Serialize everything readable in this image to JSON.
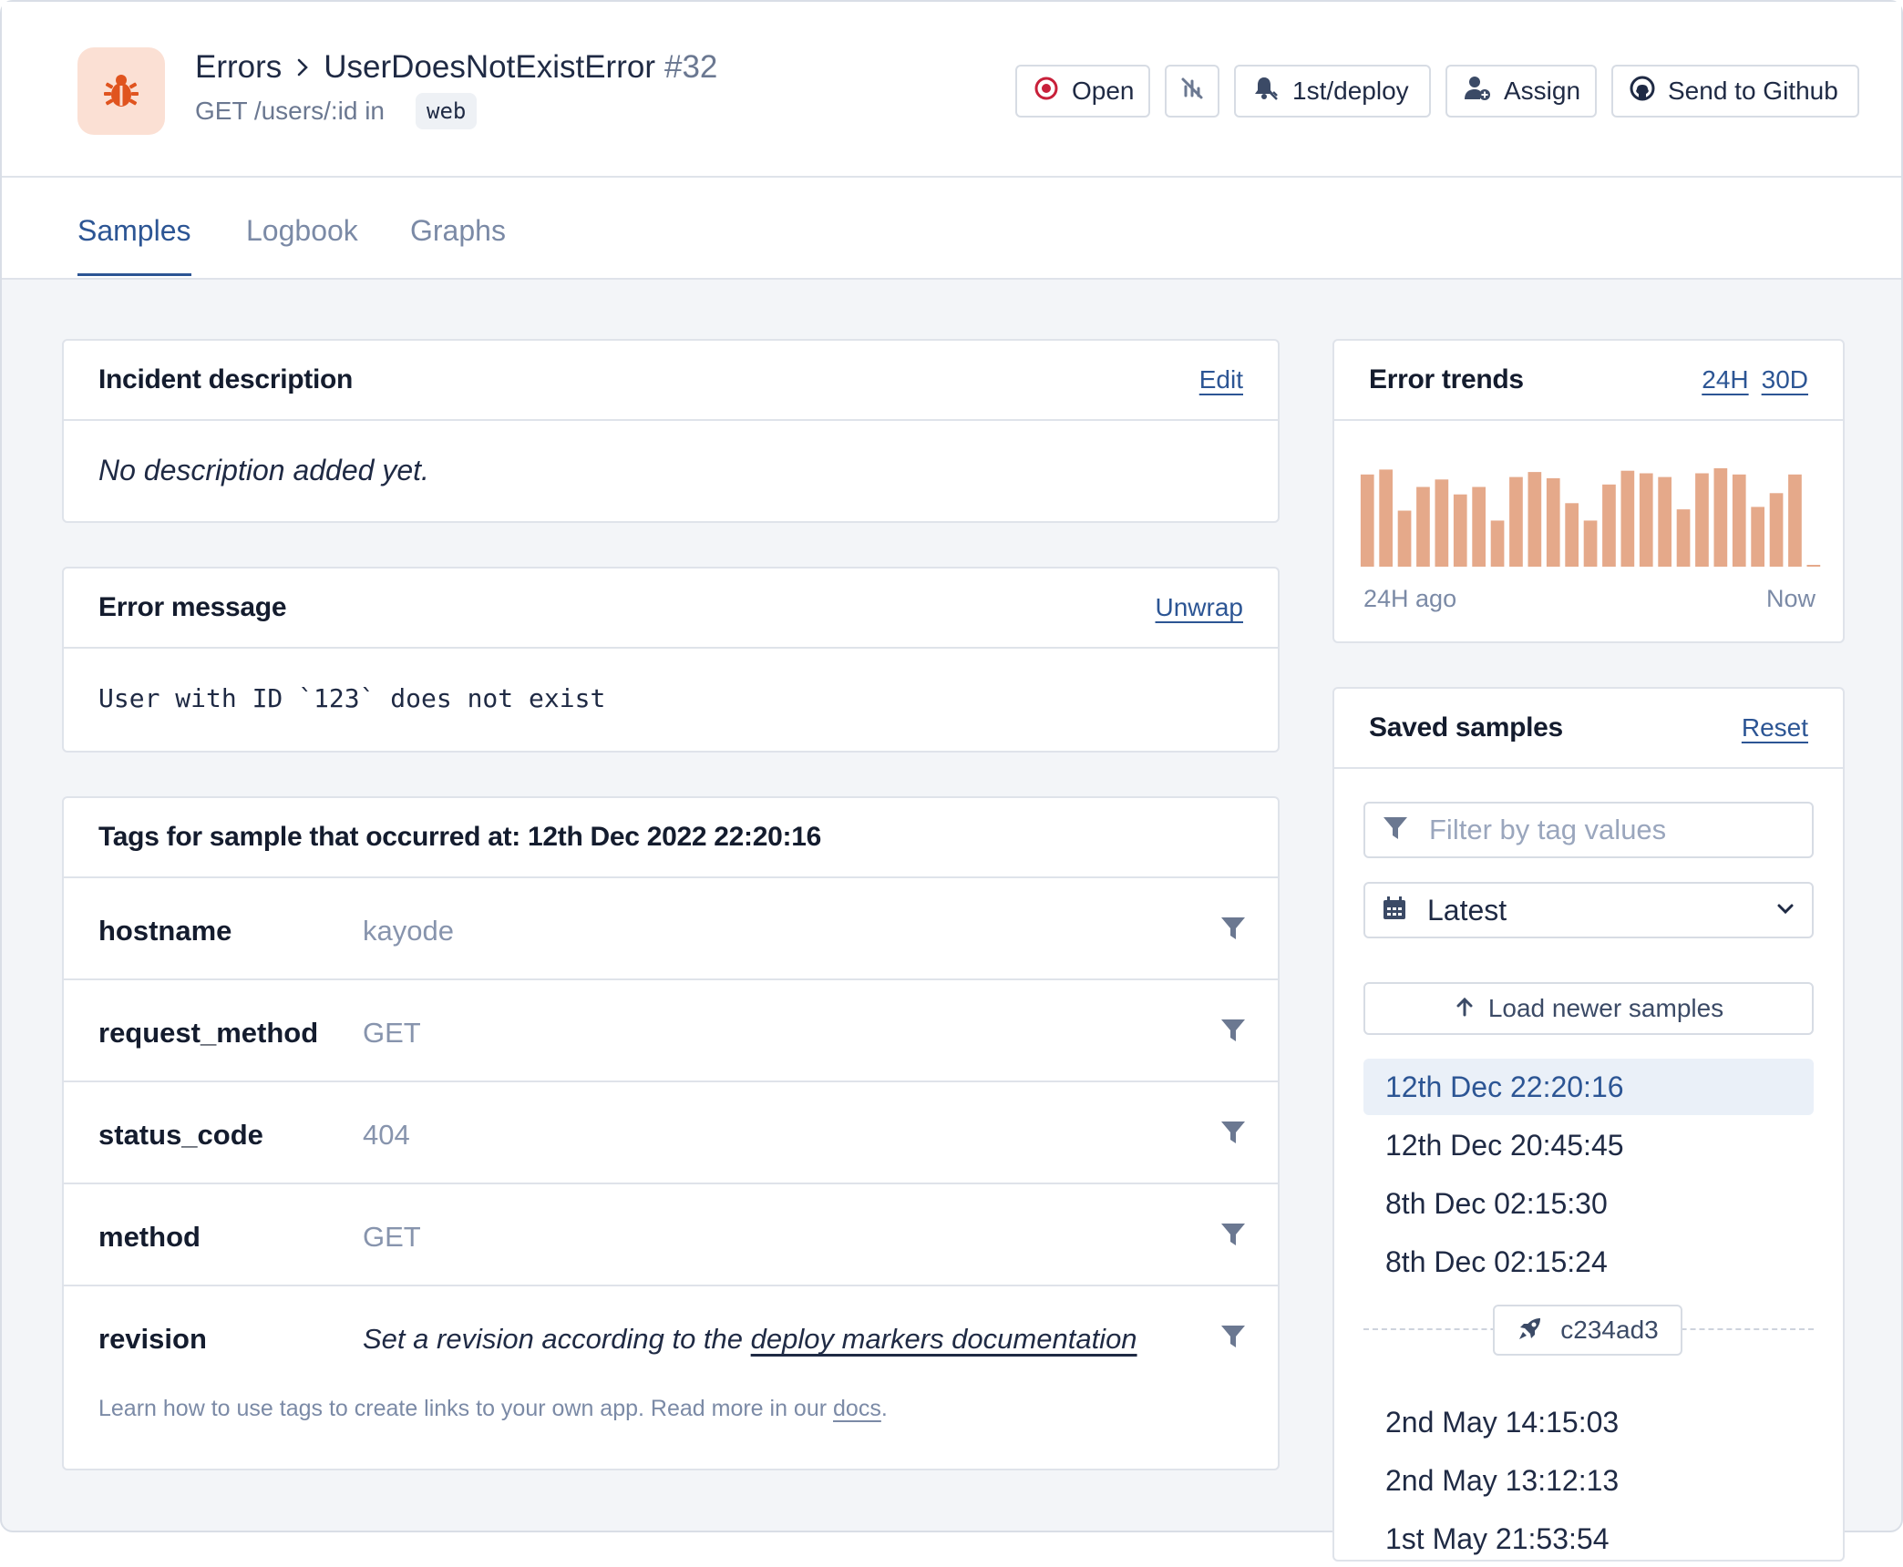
{
  "header": {
    "breadcrumb_root": "Errors",
    "error_name": "UserDoesNotExistError",
    "error_number": "#32",
    "route": "GET /users/:id in",
    "namespace": "web"
  },
  "actions": {
    "open_label": "Open",
    "notify_label": "1st/deploy",
    "assign_label": "Assign",
    "github_label": "Send to Github"
  },
  "tabs": [
    "Samples",
    "Logbook",
    "Graphs"
  ],
  "incident": {
    "title": "Incident description",
    "edit_label": "Edit",
    "body": "No description added yet."
  },
  "error_message": {
    "title": "Error message",
    "unwrap_label": "Unwrap",
    "body": "User with ID `123` does not exist"
  },
  "tags": {
    "title": "Tags for sample that occurred at: 12th Dec 2022 22:20:16",
    "rows": [
      {
        "key": "hostname",
        "value": "kayode"
      },
      {
        "key": "request_method",
        "value": "GET"
      },
      {
        "key": "status_code",
        "value": "404"
      },
      {
        "key": "method",
        "value": "GET"
      }
    ],
    "revision_key": "revision",
    "revision_prefix": "Set a revision according to the",
    "revision_link": "deploy markers documentation",
    "footer_prefix": "Learn how to use tags to create links to your own app. Read more in our",
    "footer_link": "docs",
    "footer_suffix": "."
  },
  "trends": {
    "title": "Error trends",
    "range_24h": "24H",
    "range_30d": "30D",
    "start_label": "24H ago",
    "end_label": "Now",
    "bar_color": "#e5a98a"
  },
  "chart_data": {
    "type": "bar",
    "values": [
      74,
      78,
      45,
      64,
      70,
      58,
      64,
      37,
      72,
      76,
      71,
      51,
      37,
      66,
      77,
      75,
      72,
      46,
      75,
      79,
      74,
      48,
      59,
      74,
      1
    ]
  },
  "samples": {
    "title": "Saved samples",
    "reset_label": "Reset",
    "filter_placeholder": "Filter by tag values",
    "select_value": "Latest",
    "load_newer_label": "Load newer samples",
    "items_before_deploy": [
      "12th Dec 22:20:16",
      "12th Dec 20:45:45",
      "8th Dec 02:15:30",
      "8th Dec 02:15:24"
    ],
    "deploy_marker": "c234ad3",
    "items_after_deploy": [
      "2nd May 14:15:03",
      "2nd May 13:12:13",
      "1st May 21:53:54"
    ]
  },
  "colors": {
    "accent": "#2c5594",
    "open_status": "#c8203a",
    "bug_icon": "#e0541f",
    "bug_icon_bg": "#fbe0d4"
  }
}
